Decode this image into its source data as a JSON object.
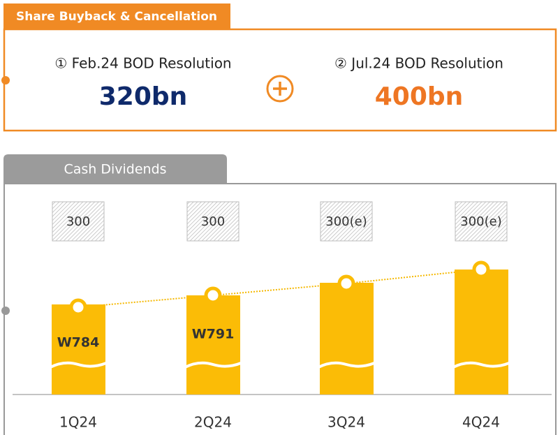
{
  "buyback": {
    "tab": "Share Buyback & Cancellation",
    "items": [
      {
        "label": "① Feb.24 BOD Resolution",
        "amount": "320bn"
      },
      {
        "label": "② Jul.24 BOD Resolution",
        "amount": "400bn"
      }
    ]
  },
  "dividends": {
    "tab": "Cash Dividends",
    "quarters": [
      {
        "name": "1Q24",
        "dps": "300",
        "total": "W784"
      },
      {
        "name": "2Q24",
        "dps": "300",
        "total": "W791"
      },
      {
        "name": "3Q24",
        "dps": "300(e)"
      },
      {
        "name": "4Q24",
        "dps": "300(e)"
      }
    ]
  }
}
